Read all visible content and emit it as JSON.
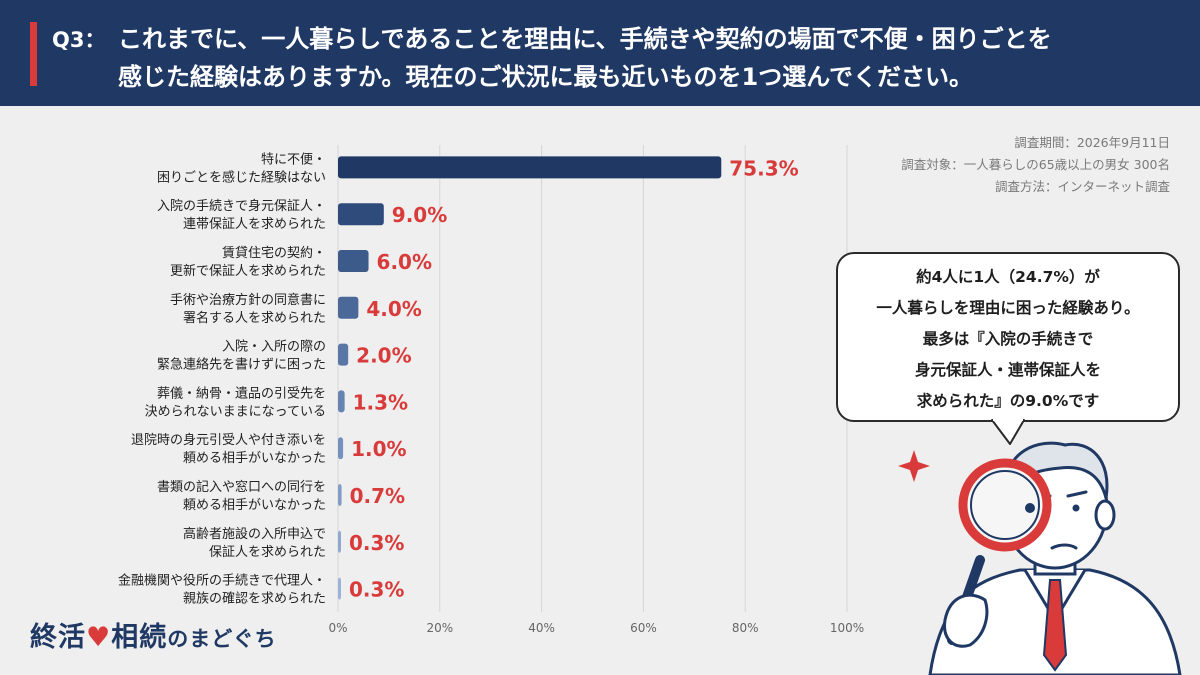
{
  "header": {
    "qnum": "Q3：",
    "line1": "これまでに、一人暮らしであることを理由に、手続きや契約の場面で不便・困りごとを",
    "line2": "感じた経験はありますか。現在のご状況に最も近いものを1つ選んでください。"
  },
  "info": {
    "period": "調査期間：2026年9月11日",
    "target": "調査対象：一人暮らしの65歳以上の男女 300名",
    "method": "調査方法：インターネット調査"
  },
  "callout": {
    "lines": [
      "約4人に1人（24.7%）が",
      "一人暮らしを理由に困った経験あり。",
      "最多は『入院の手続きで",
      "身元保証人・連帯保証人を",
      "求められた』の9.0%です"
    ]
  },
  "logo": {
    "part1": "終活",
    "part2": "相続",
    "part3": "のまどぐち"
  },
  "colors": {
    "header_bg": "#1f3864",
    "accent_red": "#d93a3a",
    "value_label": "#d93a3a",
    "grid": "#d6d6d6"
  },
  "chart_data": {
    "type": "bar",
    "orientation": "horizontal",
    "categories": [
      [
        "特に不便・",
        "困りごとを感じた経験はない"
      ],
      [
        "入院の手続きで身元保証人・",
        "連帯保証人を求められた"
      ],
      [
        "賃貸住宅の契約・",
        "更新で保証人を求められた"
      ],
      [
        "手術や治療方針の同意書に",
        "署名する人を求められた"
      ],
      [
        "入院・入所の際の",
        "緊急連絡先を書けずに困った"
      ],
      [
        "葬儀・納骨・遺品の引受先を",
        "決められないままになっている"
      ],
      [
        "退院時の身元引受人や付き添いを",
        "頼める相手がいなかった"
      ],
      [
        "書類の記入や窓口への同行を",
        "頼める相手がいなかった"
      ],
      [
        "高齢者施設の入所申込で",
        "保証人を求められた"
      ],
      [
        "金融機関や役所の手続きで代理人・",
        "親族の確認を求められた"
      ]
    ],
    "values": [
      75.3,
      9.0,
      6.0,
      4.0,
      2.0,
      1.3,
      1.0,
      0.7,
      0.3,
      0.3
    ],
    "value_labels": [
      "75.3%",
      "9.0%",
      "6.0%",
      "4.0%",
      "2.0%",
      "1.3%",
      "1.0%",
      "0.7%",
      "0.3%",
      "0.3%"
    ],
    "bar_colors": [
      "#1f3864",
      "#2f4b7c",
      "#3c5a8a",
      "#4a6898",
      "#5876a6",
      "#6683b2",
      "#7490bd",
      "#819cc6",
      "#8ea8cf",
      "#9bb3d7"
    ],
    "xlim": [
      0,
      100
    ],
    "xticks": [
      "0%",
      "20%",
      "40%",
      "60%",
      "80%",
      "100%"
    ],
    "grid": true
  }
}
